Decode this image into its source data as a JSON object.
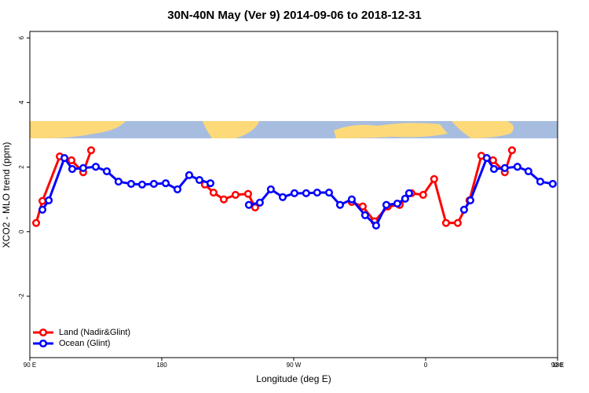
{
  "chart_data": {
    "type": "line",
    "title": "30N-40N May (Ver 9)   2014-09-06 to 2018-12-31",
    "x_label": "Longitude (deg E)",
    "y_label": "XCO2 - MLO trend (ppm)",
    "xlim": [
      90,
      450
    ],
    "xticks": [
      {
        "value": 90,
        "label": "90 E"
      },
      {
        "value": 180,
        "label": "180"
      },
      {
        "value": 270,
        "label": "90 W"
      },
      {
        "value": 360,
        "label": "0"
      },
      {
        "value": 450,
        "label": "90 E"
      }
    ],
    "xticks_extra_label": "180",
    "ylim": [
      -3.9,
      6.2
    ],
    "yticks": [
      -2,
      0,
      2,
      4,
      6
    ],
    "legend": "bottom-left",
    "series": [
      {
        "name": "Land (Nadir&Glint)",
        "color": "#ff0000",
        "x": [
          94.3,
          98.6,
          110.4,
          118.4,
          126.4,
          131.8,
          null,
          209.4,
          215.3,
          222.3,
          230.3,
          238.9,
          243.7,
          null,
          309.6,
          317.1,
          325.1,
          334.2,
          342.3,
          350.3,
          358.3,
          365.8,
          373.9,
          381.9,
          389.9,
          398,
          406,
          414,
          418.9
        ],
        "values": [
          0.27,
          0.95,
          2.33,
          2.21,
          1.84,
          2.52,
          null,
          1.46,
          1.21,
          1.0,
          1.14,
          1.17,
          0.75,
          null,
          0.92,
          0.78,
          0.32,
          0.78,
          0.83,
          1.19,
          1.14,
          1.63,
          0.27,
          0.27,
          0.97,
          2.35,
          2.21,
          1.84,
          2.52
        ]
      },
      {
        "name": "Ocean (Glint)",
        "color": "#0000ff",
        "x": [
          98.6,
          102.9,
          113.6,
          118.9,
          126.4,
          135,
          142.5,
          150.5,
          159.1,
          166.6,
          174.6,
          182.7,
          190.7,
          198.7,
          205.7,
          213.2,
          null,
          239.4,
          246.9,
          254.4,
          262.5,
          270.5,
          278.5,
          286,
          294.1,
          301.6,
          309.6,
          318.7,
          326.2,
          333.2,
          340.7,
          346,
          348.7,
          null,
          386.2,
          390.5,
          401.7,
          406.6,
          414,
          422.6,
          430.1,
          438.2,
          446.7
        ],
        "values": [
          0.68,
          0.97,
          2.28,
          1.94,
          1.97,
          2.01,
          1.87,
          1.55,
          1.48,
          1.46,
          1.48,
          1.5,
          1.31,
          1.75,
          1.6,
          1.5,
          null,
          0.83,
          0.9,
          1.31,
          1.07,
          1.19,
          1.19,
          1.21,
          1.21,
          0.83,
          1.0,
          0.51,
          0.19,
          0.83,
          0.87,
          1.02,
          1.19,
          null,
          0.68,
          0.97,
          2.28,
          1.94,
          1.97,
          2.01,
          1.87,
          1.55,
          1.48
        ]
      }
    ]
  }
}
